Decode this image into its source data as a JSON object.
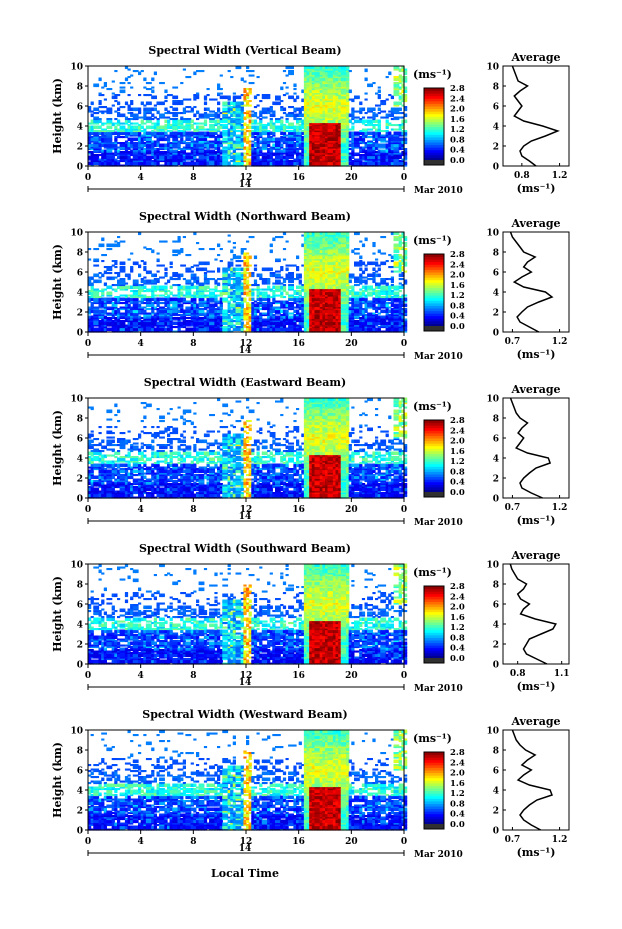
{
  "chart_data": [
    {
      "type": "heatmap",
      "title": "Spectral Width (Vertical Beam)",
      "xlabel": "",
      "ylabel": "Height (km)",
      "xticks": [
        "0",
        "4",
        "8",
        "12",
        "16",
        "20",
        "0"
      ],
      "xlim": [
        0,
        24
      ],
      "ylim": [
        0,
        10
      ],
      "yticks": [
        "0",
        "2",
        "4",
        "6",
        "8",
        "10"
      ],
      "date_label": "14",
      "date_suffix": "Mar 2010",
      "colorbar": {
        "unit": "(ms⁻¹)",
        "ticks": [
          "0.0",
          "0.4",
          "0.8",
          "1.2",
          "1.6",
          "2.0",
          "2.4",
          "2.8"
        ],
        "range": [
          0,
          2.8
        ]
      },
      "profile": {
        "title": "Average",
        "xlabel": "(ms⁻¹)",
        "xticks": [
          "0.8",
          "1.2"
        ],
        "xlim": [
          0.6,
          1.3
        ],
        "heights": [
          0,
          0.5,
          1,
          1.5,
          2,
          2.5,
          3,
          3.5,
          4,
          4.5,
          5,
          5.5,
          6,
          6.5,
          7,
          7.5,
          8,
          8.5,
          9,
          9.5,
          10
        ],
        "values": [
          0.95,
          0.88,
          0.8,
          0.78,
          0.82,
          0.9,
          1.05,
          1.18,
          1.02,
          0.82,
          0.72,
          0.76,
          0.8,
          0.76,
          0.72,
          0.78,
          0.86,
          0.76,
          0.74,
          0.72,
          0.7
        ]
      }
    },
    {
      "type": "heatmap",
      "title": "Spectral Width (Northward Beam)",
      "xlabel": "",
      "ylabel": "Height (km)",
      "xticks": [
        "0",
        "4",
        "8",
        "12",
        "16",
        "20",
        "0"
      ],
      "xlim": [
        0,
        24
      ],
      "ylim": [
        0,
        10
      ],
      "yticks": [
        "0",
        "2",
        "4",
        "6",
        "8",
        "10"
      ],
      "date_label": "14",
      "date_suffix": "Mar 2010",
      "colorbar": {
        "unit": "(ms⁻¹)",
        "ticks": [
          "0.0",
          "0.4",
          "0.8",
          "1.2",
          "1.6",
          "2.0",
          "2.4",
          "2.8"
        ],
        "range": [
          0,
          2.8
        ]
      },
      "profile": {
        "title": "Average",
        "xlabel": "(ms⁻¹)",
        "xticks": [
          "0.7",
          "1.2"
        ],
        "xlim": [
          0.6,
          1.3
        ],
        "heights": [
          0,
          0.5,
          1,
          1.5,
          2,
          2.5,
          3,
          3.5,
          4,
          4.5,
          5,
          5.5,
          6,
          6.5,
          7,
          7.5,
          8,
          8.5,
          9,
          9.5,
          10
        ],
        "values": [
          0.98,
          0.88,
          0.78,
          0.75,
          0.8,
          0.86,
          0.98,
          1.12,
          1.05,
          0.82,
          0.72,
          0.8,
          0.9,
          0.82,
          0.86,
          0.94,
          0.82,
          0.78,
          0.74,
          0.7,
          0.68
        ]
      }
    },
    {
      "type": "heatmap",
      "title": "Spectral Width (Eastward Beam)",
      "xlabel": "",
      "ylabel": "Height (km)",
      "xticks": [
        "0",
        "4",
        "8",
        "12",
        "16",
        "20",
        "0"
      ],
      "xlim": [
        0,
        24
      ],
      "ylim": [
        0,
        10
      ],
      "yticks": [
        "0",
        "2",
        "4",
        "6",
        "8",
        "10"
      ],
      "date_label": "14",
      "date_suffix": "Mar 2010",
      "colorbar": {
        "unit": "(ms⁻¹)",
        "ticks": [
          "0.0",
          "0.4",
          "0.8",
          "1.2",
          "1.6",
          "2.0",
          "2.4",
          "2.8"
        ],
        "range": [
          0,
          2.8
        ]
      },
      "profile": {
        "title": "Average",
        "xlabel": "(ms⁻¹)",
        "xticks": [
          "0.7",
          "1.2"
        ],
        "xlim": [
          0.6,
          1.3
        ],
        "heights": [
          0,
          0.5,
          1,
          1.5,
          2,
          2.5,
          3,
          3.5,
          4,
          4.5,
          5,
          5.5,
          6,
          6.5,
          7,
          7.5,
          8,
          8.5,
          9,
          9.5,
          10
        ],
        "values": [
          1.02,
          0.9,
          0.8,
          0.78,
          0.82,
          0.88,
          0.95,
          1.1,
          1.08,
          0.86,
          0.74,
          0.78,
          0.82,
          0.76,
          0.8,
          0.86,
          0.78,
          0.74,
          0.72,
          0.7,
          0.68
        ]
      }
    },
    {
      "type": "heatmap",
      "title": "Spectral Width (Southward Beam)",
      "xlabel": "",
      "ylabel": "Height (km)",
      "xticks": [
        "0",
        "4",
        "8",
        "12",
        "16",
        "20",
        "0"
      ],
      "xlim": [
        0,
        24
      ],
      "ylim": [
        0,
        10
      ],
      "yticks": [
        "0",
        "2",
        "4",
        "6",
        "8",
        "10"
      ],
      "date_label": "14",
      "date_suffix": "Mar 2010",
      "colorbar": {
        "unit": "(ms⁻¹)",
        "ticks": [
          "0.0",
          "0.4",
          "0.8",
          "1.2",
          "1.6",
          "2.0",
          "2.4",
          "2.8"
        ],
        "range": [
          0,
          2.8
        ]
      },
      "profile": {
        "title": "Average",
        "xlabel": "(ms⁻¹)",
        "xticks": [
          "0.8",
          "1.1"
        ],
        "xlim": [
          0.7,
          1.15
        ],
        "heights": [
          0,
          0.5,
          1,
          1.5,
          2,
          2.5,
          3,
          3.5,
          4,
          4.5,
          5,
          5.5,
          6,
          6.5,
          7,
          7.5,
          8,
          8.5,
          9,
          9.5,
          10
        ],
        "values": [
          1.0,
          0.93,
          0.86,
          0.84,
          0.86,
          0.88,
          0.96,
          1.04,
          1.06,
          0.92,
          0.82,
          0.84,
          0.88,
          0.82,
          0.8,
          0.84,
          0.86,
          0.8,
          0.78,
          0.76,
          0.75
        ]
      }
    },
    {
      "type": "heatmap",
      "title": "Spectral Width (Westward Beam)",
      "xlabel": "Local Time",
      "ylabel": "Height (km)",
      "xticks": [
        "0",
        "4",
        "8",
        "12",
        "16",
        "20",
        "0"
      ],
      "xlim": [
        0,
        24
      ],
      "ylim": [
        0,
        10
      ],
      "yticks": [
        "0",
        "2",
        "4",
        "6",
        "8",
        "10"
      ],
      "date_label": "14",
      "date_suffix": "Mar 2010",
      "colorbar": {
        "unit": "(ms⁻¹)",
        "ticks": [
          "0.0",
          "0.4",
          "0.8",
          "1.2",
          "1.6",
          "2.0",
          "2.4",
          "2.8"
        ],
        "range": [
          0,
          2.8
        ]
      },
      "profile": {
        "title": "Average",
        "xlabel": "(ms⁻¹)",
        "xticks": [
          "0.7",
          "1.2"
        ],
        "xlim": [
          0.6,
          1.3
        ],
        "heights": [
          0,
          0.5,
          1,
          1.5,
          2,
          2.5,
          3,
          3.5,
          4,
          4.5,
          5,
          5.5,
          6,
          6.5,
          7,
          7.5,
          8,
          8.5,
          9,
          9.5,
          10
        ],
        "values": [
          1.0,
          0.9,
          0.82,
          0.78,
          0.82,
          0.88,
          0.96,
          1.12,
          1.1,
          0.88,
          0.76,
          0.82,
          0.9,
          0.8,
          0.86,
          0.94,
          0.84,
          0.78,
          0.74,
          0.72,
          0.7
        ]
      }
    }
  ]
}
